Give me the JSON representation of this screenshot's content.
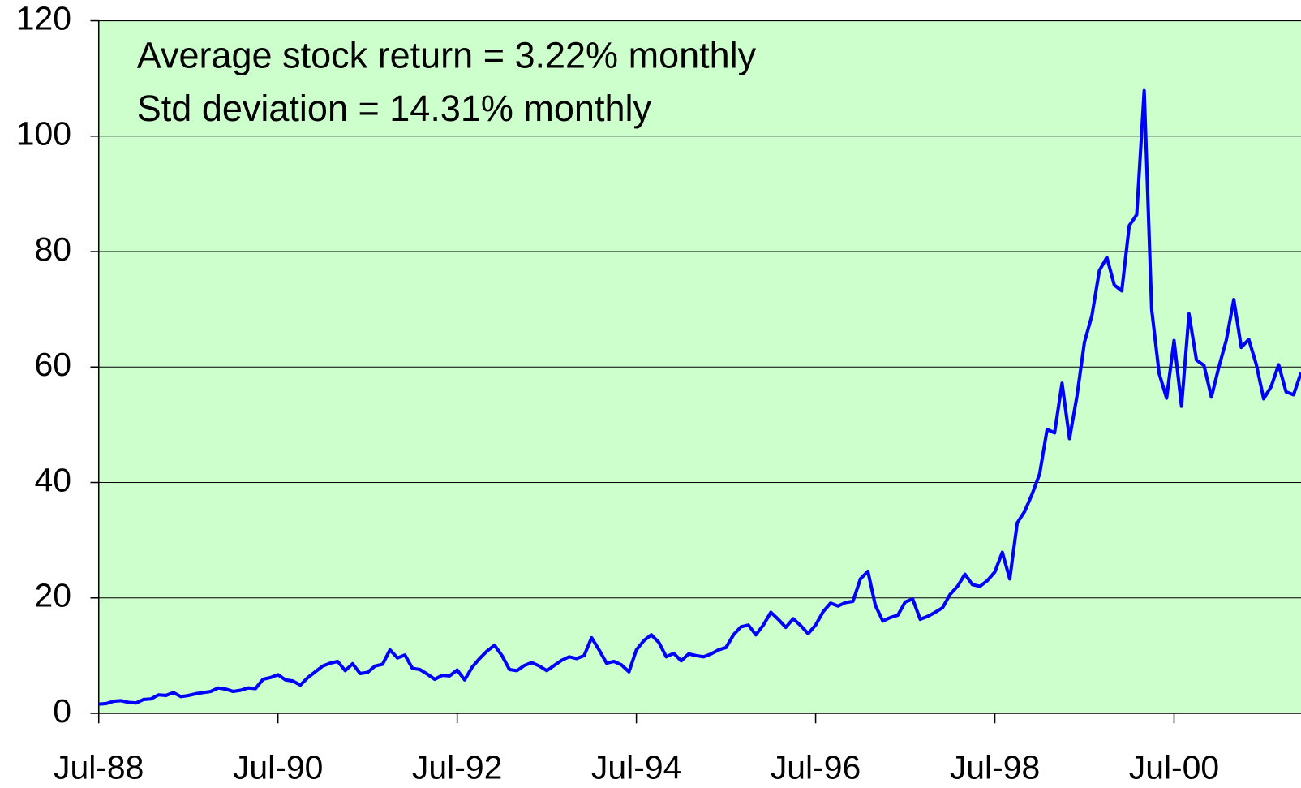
{
  "chart_data": {
    "type": "line",
    "annotations": [
      "Average stock return = 3.22% monthly",
      "Std deviation = 14.31% monthly"
    ],
    "categories": [
      "Jul-88",
      null,
      null,
      null,
      null,
      null,
      null,
      null,
      null,
      null,
      null,
      null,
      null,
      null,
      null,
      null,
      null,
      null,
      null,
      null,
      null,
      null,
      null,
      null,
      "Jul-90",
      null,
      null,
      null,
      null,
      null,
      null,
      null,
      null,
      null,
      null,
      null,
      null,
      null,
      null,
      null,
      null,
      null,
      null,
      null,
      null,
      null,
      null,
      null,
      "Jul-92",
      null,
      null,
      null,
      null,
      null,
      null,
      null,
      null,
      null,
      null,
      null,
      null,
      null,
      null,
      null,
      null,
      null,
      null,
      null,
      null,
      null,
      null,
      null,
      "Jul-94",
      null,
      null,
      null,
      null,
      null,
      null,
      null,
      null,
      null,
      null,
      null,
      null,
      null,
      null,
      null,
      null,
      null,
      null,
      null,
      null,
      null,
      null,
      null,
      "Jul-96",
      null,
      null,
      null,
      null,
      null,
      null,
      null,
      null,
      null,
      null,
      null,
      null,
      null,
      null,
      null,
      null,
      null,
      null,
      null,
      null,
      null,
      null,
      null,
      "Jul-98",
      null,
      null,
      null,
      null,
      null,
      null,
      null,
      null,
      null,
      null,
      null,
      null,
      null,
      null,
      null,
      null,
      null,
      null,
      null,
      null,
      null,
      null,
      null,
      "Jul-00",
      null,
      null,
      null,
      null,
      null,
      null,
      null,
      null,
      null,
      null,
      null,
      null,
      null,
      null,
      null,
      null,
      null
    ],
    "series": [
      {
        "color": "#0000ff",
        "values": [
          1.6,
          1.7,
          2.1,
          2.2,
          1.9,
          1.8,
          2.4,
          2.5,
          3.2,
          3.1,
          3.6,
          2.9,
          3.1,
          3.4,
          3.6,
          3.8,
          4.4,
          4.2,
          3.8,
          4.0,
          4.4,
          4.3,
          5.9,
          6.2,
          6.7,
          5.8,
          5.6,
          4.9,
          6.2,
          7.2,
          8.2,
          8.7,
          9.0,
          7.4,
          8.6,
          6.9,
          7.1,
          8.2,
          8.5,
          11.0,
          9.6,
          10.1,
          7.8,
          7.6,
          6.8,
          5.9,
          6.6,
          6.5,
          7.5,
          5.8,
          8.0,
          9.5,
          10.8,
          11.8,
          10.0,
          7.6,
          7.4,
          8.3,
          8.8,
          8.2,
          7.4,
          8.3,
          9.2,
          9.8,
          9.5,
          10.0,
          13.1,
          11.0,
          8.7,
          9.0,
          8.4,
          7.2,
          11.0,
          12.6,
          13.6,
          12.3,
          9.8,
          10.4,
          9.1,
          10.3,
          10.0,
          9.8,
          10.3,
          11.0,
          11.4,
          13.6,
          15.0,
          15.3,
          13.6,
          15.3,
          17.5,
          16.3,
          14.9,
          16.4,
          15.2,
          13.8,
          15.3,
          17.6,
          19.1,
          18.6,
          19.2,
          19.4,
          23.3,
          24.6,
          18.7,
          16.0,
          16.6,
          17.0,
          19.3,
          19.8,
          16.3,
          16.8,
          17.5,
          18.3,
          20.6,
          22.0,
          24.1,
          22.3,
          22.0,
          23.0,
          24.5,
          27.9,
          23.3,
          33.0,
          35.0,
          38.0,
          41.5,
          49.2,
          48.6,
          57.2,
          47.6,
          55.0,
          64.3,
          68.9,
          76.7,
          79.0,
          74.2,
          73.2,
          84.5,
          86.4,
          107.9,
          70.0,
          58.9,
          54.6,
          64.6,
          53.2,
          69.2,
          61.2,
          60.3,
          54.8,
          60.0,
          64.7,
          71.7,
          63.4,
          64.8,
          60.5,
          54.5,
          56.6,
          60.4,
          55.7,
          55.2,
          59.0
        ]
      }
    ],
    "ylim": [
      0,
      120
    ],
    "yticks": [
      0,
      20,
      40,
      60,
      80,
      100,
      120
    ],
    "grid": true,
    "background": "#ccffcc"
  }
}
